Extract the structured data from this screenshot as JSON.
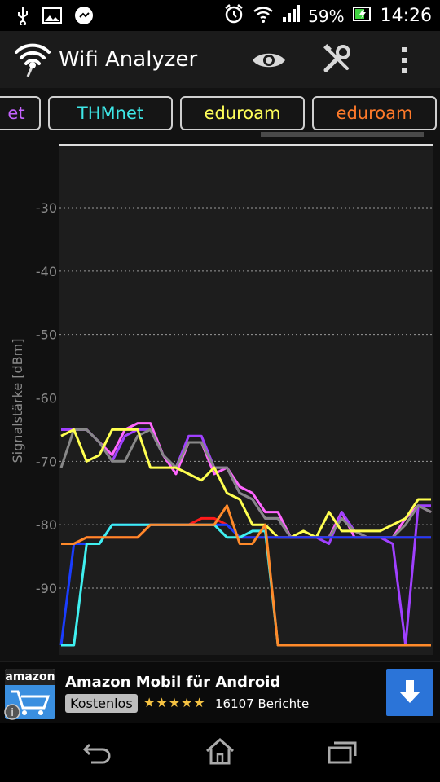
{
  "status_bar": {
    "battery": "59%",
    "time": "14:26",
    "icons": [
      "usb-icon",
      "image-icon",
      "chat-icon",
      "alarm-icon",
      "wifi-signal-icon",
      "cell-signal-icon",
      "battery-icon"
    ]
  },
  "app": {
    "title": "Wifi Analyzer",
    "actions": [
      "eye-icon",
      "tools-icon",
      "overflow-menu-icon"
    ]
  },
  "tabs": [
    {
      "label": "et",
      "color": "#c563ff"
    },
    {
      "label": "THMnet",
      "color": "#3ee7e7"
    },
    {
      "label": "eduroam",
      "color": "#ffff5a"
    },
    {
      "label": "eduroam",
      "color": "#ff7a2a"
    }
  ],
  "chart_data": {
    "type": "line",
    "ylabel": "Signalstärke [dBm]",
    "yticks": [
      -30,
      -40,
      -50,
      -60,
      -70,
      -80,
      -90
    ],
    "ylim": [
      -100,
      -20
    ],
    "x": [
      0,
      1,
      2,
      3,
      4,
      5,
      6,
      7,
      8,
      9,
      10,
      11,
      12,
      13,
      14,
      15,
      16,
      17,
      18,
      19,
      20,
      21,
      22,
      23,
      24,
      25,
      26,
      27,
      28,
      29
    ],
    "series": [
      {
        "name": "",
        "color": "#ff66ff",
        "values": [
          -65,
          -65,
          -65,
          -67,
          -69,
          -65,
          -64,
          -64,
          -69,
          -72,
          -67,
          -67,
          -72,
          -71,
          -74,
          -75,
          -78,
          -78,
          -82,
          -82,
          -82,
          -82,
          -78,
          -82,
          -82,
          -82,
          -82,
          -79,
          -77,
          -78
        ]
      },
      {
        "name": "",
        "color": "#a040ff",
        "values": [
          -65,
          -65,
          -65,
          -67,
          -70,
          -66,
          -65,
          -65,
          -69,
          -71,
          -66,
          -66,
          -71,
          -71,
          -75,
          -76,
          -79,
          -79,
          -82,
          -82,
          -82,
          -83,
          -78,
          -81,
          -82,
          -82,
          -83,
          -99,
          -77,
          -77
        ]
      },
      {
        "name": "",
        "color": "#888888",
        "values": [
          -71,
          -65,
          -65,
          -67,
          -70,
          -70,
          -66,
          -65,
          -69,
          -71,
          -67,
          -67,
          -71,
          -71,
          -75,
          -76,
          -79,
          -79,
          -82,
          -82,
          -82,
          -82,
          -79,
          -81,
          -82,
          -82,
          -82,
          -80,
          -77,
          -78
        ]
      },
      {
        "name": "",
        "color": "#ffff50",
        "values": [
          -66,
          -65,
          -70,
          -69,
          -65,
          -65,
          -65,
          -71,
          -71,
          -71,
          -72,
          -73,
          -71,
          -75,
          -76,
          -80,
          -80,
          -82,
          -82,
          -81,
          -82,
          -78,
          -81,
          -81,
          -81,
          -81,
          -80,
          -79,
          -76,
          -76
        ]
      },
      {
        "name": "",
        "color": "#ff1a1a",
        "values": [
          -83,
          -83,
          -82,
          -82,
          -82,
          -82,
          -82,
          -80,
          -80,
          -80,
          -80,
          -79,
          -79,
          -80,
          -82,
          -82,
          -82,
          -82,
          -82,
          -82,
          -82,
          -82,
          -82,
          -82,
          -82,
          -82,
          -82,
          -82,
          -82,
          -82
        ]
      },
      {
        "name": "",
        "color": "#1a3dff",
        "values": [
          -99,
          -83,
          -83,
          -83,
          -80,
          -80,
          -80,
          -80,
          -80,
          -80,
          -80,
          -80,
          -80,
          -80,
          -82,
          -82,
          -82,
          -82,
          -82,
          -82,
          -82,
          -82,
          -82,
          -82,
          -82,
          -82,
          -82,
          -82,
          -82,
          -82
        ]
      },
      {
        "name": "",
        "color": "#40f0f0",
        "values": [
          -99,
          -99,
          -83,
          -83,
          -80,
          -80,
          -80,
          -80,
          -80,
          -80,
          -80,
          -80,
          -80,
          -82,
          -82,
          -81,
          -81,
          -99,
          -99,
          -99,
          -99,
          -99,
          -99,
          -99,
          -99,
          -99,
          -99,
          -99,
          -99,
          -99
        ]
      },
      {
        "name": "",
        "color": "#ff8a2a",
        "values": [
          -83,
          -83,
          -82,
          -82,
          -82,
          -82,
          -82,
          -80,
          -80,
          -80,
          -80,
          -80,
          -80,
          -77,
          -83,
          -83,
          -80,
          -99,
          -99,
          -99,
          -99,
          -99,
          -99,
          -99,
          -99,
          -99,
          -99,
          -99,
          -99,
          -99
        ]
      }
    ]
  },
  "ad": {
    "brand": "amazon",
    "title": "Amazon Mobil für Android",
    "price": "Kostenlos",
    "stars": "★★★★★",
    "reviews": "16107 Berichte"
  },
  "nav": {
    "icons": [
      "back-icon",
      "home-icon",
      "recent-apps-icon"
    ]
  }
}
